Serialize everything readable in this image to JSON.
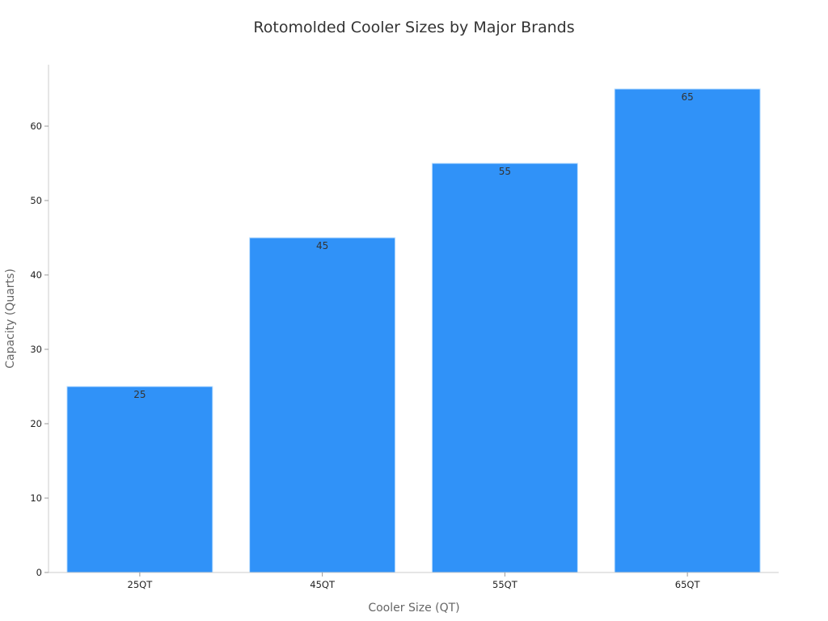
{
  "chart_data": {
    "type": "bar",
    "title": "Rotomolded Cooler Sizes by Major Brands",
    "xlabel": "Cooler Size (QT)",
    "ylabel": "Capacity (Quarts)",
    "categories": [
      "25QT",
      "45QT",
      "55QT",
      "65QT"
    ],
    "values": [
      25,
      45,
      55,
      65
    ],
    "data_labels": [
      "25",
      "45",
      "55",
      "65"
    ],
    "ylim": [
      0,
      68.3
    ],
    "yticks": [
      0,
      10,
      20,
      30,
      40,
      50,
      60
    ],
    "grid": false,
    "legend": "none",
    "bar_color": "#3092F8"
  }
}
